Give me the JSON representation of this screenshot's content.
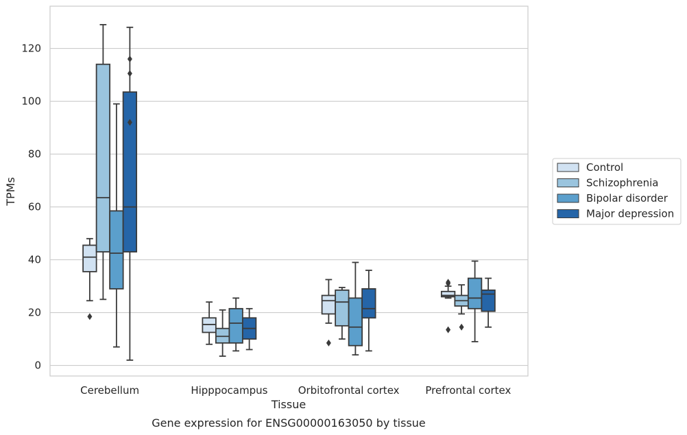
{
  "caption": "Gene expression for ENSG00000163050 by tissue",
  "chart_data": {
    "type": "box",
    "xlabel": "Tissue",
    "ylabel": "TPMs",
    "ylim": [
      -4,
      136
    ],
    "yticks": [
      0,
      20,
      40,
      60,
      80,
      100,
      120
    ],
    "grid": "horizontal",
    "legend_placement": "right",
    "categories": [
      "Cerebellum",
      "Hipppocampus",
      "Orbitofrontal cortex",
      "Prefrontal cortex"
    ],
    "series": [
      {
        "name": "Control",
        "color": "#d1e2f2",
        "boxes": [
          {
            "whisker_low": 24.5,
            "q1": 35.5,
            "median": 41,
            "q3": 45.5,
            "whisker_high": 48,
            "outliers": [
              18.5
            ]
          },
          {
            "whisker_low": 8,
            "q1": 12.5,
            "median": 15.5,
            "q3": 18,
            "whisker_high": 24,
            "outliers": []
          },
          {
            "whisker_low": 16,
            "q1": 19.5,
            "median": 24.5,
            "q3": 26.5,
            "whisker_high": 32.5,
            "outliers": [
              8.5
            ]
          },
          {
            "whisker_low": 25.5,
            "q1": 26,
            "median": 26.5,
            "q3": 28,
            "whisker_high": 30,
            "outliers": [
              13.5,
              31,
              31.5
            ]
          }
        ]
      },
      {
        "name": "Schizophrenia",
        "color": "#9ac4de",
        "boxes": [
          {
            "whisker_low": 25,
            "q1": 43,
            "median": 63.5,
            "q3": 114,
            "whisker_high": 129,
            "outliers": []
          },
          {
            "whisker_low": 3.5,
            "q1": 8.5,
            "median": 11,
            "q3": 14,
            "whisker_high": 21,
            "outliers": []
          },
          {
            "whisker_low": 10,
            "q1": 15,
            "median": 24,
            "q3": 28.5,
            "whisker_high": 29.5,
            "outliers": []
          },
          {
            "whisker_low": 19.5,
            "q1": 22.5,
            "median": 24.5,
            "q3": 26.5,
            "whisker_high": 30.5,
            "outliers": [
              14.5
            ]
          }
        ]
      },
      {
        "name": "Bipolar disorder",
        "color": "#5b9fcc",
        "boxes": [
          {
            "whisker_low": 7,
            "q1": 29,
            "median": 42.5,
            "q3": 58.5,
            "whisker_high": 99,
            "outliers": []
          },
          {
            "whisker_low": 5.5,
            "q1": 8.5,
            "median": 16,
            "q3": 21.5,
            "whisker_high": 25.5,
            "outliers": []
          },
          {
            "whisker_low": 4,
            "q1": 7.5,
            "median": 14.5,
            "q3": 25.5,
            "whisker_high": 39,
            "outliers": []
          },
          {
            "whisker_low": 9,
            "q1": 21.5,
            "median": 25.5,
            "q3": 33,
            "whisker_high": 39.5,
            "outliers": []
          }
        ]
      },
      {
        "name": "Major depression",
        "color": "#2565a8",
        "boxes": [
          {
            "whisker_low": 2,
            "q1": 43,
            "median": 60,
            "q3": 103.5,
            "whisker_high": 128,
            "outliers": [
              92,
              110.5,
              116
            ]
          },
          {
            "whisker_low": 6,
            "q1": 10,
            "median": 14,
            "q3": 18,
            "whisker_high": 21.5,
            "outliers": []
          },
          {
            "whisker_low": 5.5,
            "q1": 18,
            "median": 21.5,
            "q3": 29,
            "whisker_high": 36,
            "outliers": []
          },
          {
            "whisker_low": 14.5,
            "q1": 20.5,
            "median": 27,
            "q3": 28.5,
            "whisker_high": 33,
            "outliers": []
          }
        ]
      }
    ]
  }
}
